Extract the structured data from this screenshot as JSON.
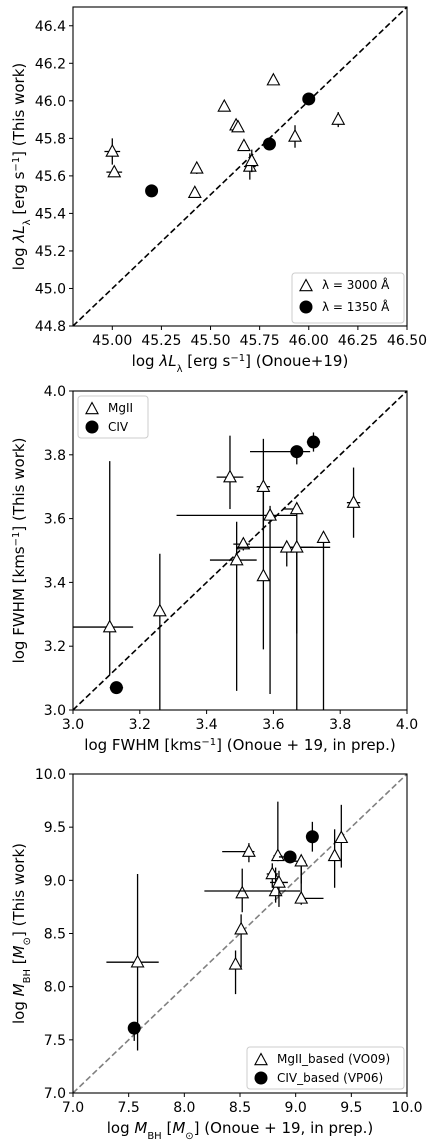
{
  "chart_data": [
    {
      "type": "scatter",
      "xlabel": "log  λL_λ [erg s⁻¹] (Onoue+19)",
      "ylabel": "log  λL_λ [erg s⁻¹] (This work)",
      "xlim": [
        44.8,
        46.5
      ],
      "ylim": [
        44.8,
        46.5
      ],
      "xticks": [
        "45.00",
        "45.25",
        "45.50",
        "45.75",
        "46.00",
        "46.25",
        "46.50"
      ],
      "yticks": [
        "44.8",
        "45.0",
        "45.2",
        "45.4",
        "45.6",
        "45.8",
        "46.0",
        "46.2",
        "46.4"
      ],
      "grid": false,
      "one_to_one_line": {
        "style": "dashed",
        "color": "#000000"
      },
      "legend_position": "lower right",
      "series": [
        {
          "name": "λ = 3000 Å",
          "marker": "triangle",
          "points": [
            {
              "x": 45.0,
              "y": 45.73,
              "xerr": 0.04,
              "yerr": 0.07
            },
            {
              "x": 45.01,
              "y": 45.62,
              "xerr": 0.04,
              "yerr": 0.02
            },
            {
              "x": 45.42,
              "y": 45.51,
              "xerr": 0.0,
              "yerr": 0.0
            },
            {
              "x": 45.43,
              "y": 45.64,
              "xerr": 0.02,
              "yerr": 0.03
            },
            {
              "x": 45.57,
              "y": 45.97,
              "xerr": 0.0,
              "yerr": 0.0
            },
            {
              "x": 45.63,
              "y": 45.87,
              "xerr": 0.02,
              "yerr": 0.01
            },
            {
              "x": 45.64,
              "y": 45.86,
              "xerr": 0.0,
              "yerr": 0.0
            },
            {
              "x": 45.67,
              "y": 45.76,
              "xerr": 0.02,
              "yerr": 0.02
            },
            {
              "x": 45.7,
              "y": 45.65,
              "xerr": 0.03,
              "yerr": 0.07
            },
            {
              "x": 45.71,
              "y": 45.68,
              "xerr": 0.02,
              "yerr": 0.06
            },
            {
              "x": 45.82,
              "y": 46.11,
              "xerr": 0.0,
              "yerr": 0.0
            },
            {
              "x": 45.93,
              "y": 45.81,
              "xerr": 0.02,
              "yerr": 0.06
            },
            {
              "x": 46.15,
              "y": 45.9,
              "xerr": 0.0,
              "yerr": 0.04
            }
          ]
        },
        {
          "name": "λ = 1350 Å",
          "marker": "circle",
          "points": [
            {
              "x": 45.2,
              "y": 45.52,
              "xerr": 0,
              "yerr": 0
            },
            {
              "x": 45.8,
              "y": 45.77,
              "xerr": 0,
              "yerr": 0
            },
            {
              "x": 46.0,
              "y": 46.01,
              "xerr": 0,
              "yerr": 0
            }
          ]
        }
      ]
    },
    {
      "type": "scatter",
      "xlabel": "log FWHM [kms⁻¹] (Onoue + 19, in prep.)",
      "ylabel": "log FWHM [kms⁻¹] (This work)",
      "xlim": [
        3.0,
        4.0
      ],
      "ylim": [
        3.0,
        4.0
      ],
      "xticks": [
        "3.0",
        "3.2",
        "3.4",
        "3.6",
        "3.8",
        "4.0"
      ],
      "yticks": [
        "3.0",
        "3.2",
        "3.4",
        "3.6",
        "3.8",
        "4.0"
      ],
      "grid": false,
      "one_to_one_line": {
        "style": "dashed",
        "color": "#000000"
      },
      "legend_position": "upper left",
      "series": [
        {
          "name": "MgII",
          "marker": "triangle",
          "points": [
            {
              "x": 3.11,
              "y": 3.26,
              "xerr": [
                0.11,
                0.07
              ],
              "yerr": [
                0.15,
                0.52
              ]
            },
            {
              "x": 3.26,
              "y": 3.31,
              "xerr": [
                0.01,
                0.01
              ],
              "yerr": [
                0.31,
                0.18
              ]
            },
            {
              "x": 3.47,
              "y": 3.73,
              "xerr": [
                0.04,
                0.04
              ],
              "yerr": [
                0.1,
                0.13
              ]
            },
            {
              "x": 3.49,
              "y": 3.47,
              "xerr": [
                0.08,
                0.06
              ],
              "yerr": [
                0.41,
                0.12
              ]
            },
            {
              "x": 3.51,
              "y": 3.52,
              "xerr": [
                0.03,
                0.02
              ],
              "yerr": [
                0.02,
                0.01
              ]
            },
            {
              "x": 3.57,
              "y": 3.42,
              "xerr": [
                0.01,
                0.01
              ],
              "yerr": [
                0.23,
                0.28
              ]
            },
            {
              "x": 3.57,
              "y": 3.7,
              "xerr": [
                0.02,
                0.02
              ],
              "yerr": [
                0.14,
                0.15
              ]
            },
            {
              "x": 3.59,
              "y": 3.61,
              "xerr": [
                0.28,
                0.08
              ],
              "yerr": [
                0.56,
                0.03
              ]
            },
            {
              "x": 3.64,
              "y": 3.51,
              "xerr": [
                0.15,
                0.08
              ],
              "yerr": [
                0.06,
                0.02
              ]
            },
            {
              "x": 3.67,
              "y": 3.63,
              "xerr": [
                0.04,
                0.01
              ],
              "yerr": [
                0.39,
                0.02
              ]
            },
            {
              "x": 3.67,
              "y": 3.51,
              "xerr": [
                0.02,
                0.1
              ],
              "yerr": [
                0.51,
                0.02
              ]
            },
            {
              "x": 3.75,
              "y": 3.54,
              "xerr": [
                0.01,
                0.01
              ],
              "yerr": [
                0.54,
                0.01
              ]
            },
            {
              "x": 3.84,
              "y": 3.65,
              "xerr": [
                0.02,
                0.02
              ],
              "yerr": [
                0.11,
                0.11
              ]
            }
          ]
        },
        {
          "name": "CIV",
          "marker": "circle",
          "points": [
            {
              "x": 3.13,
              "y": 3.07,
              "xerr": [
                0.02,
                0.02
              ],
              "yerr": [
                0.01,
                0.01
              ]
            },
            {
              "x": 3.67,
              "y": 3.81,
              "xerr": [
                0.14,
                0.04
              ],
              "yerr": [
                0.04,
                0.01
              ]
            },
            {
              "x": 3.72,
              "y": 3.84,
              "xerr": [
                0.02,
                0.02
              ],
              "yerr": [
                0.03,
                0.03
              ]
            }
          ]
        }
      ]
    },
    {
      "type": "scatter",
      "xlabel": "log M_BH [M_⊙] (Onoue + 19, in prep.)",
      "ylabel": "log M_BH [M_⊙] (This work)",
      "xlim": [
        7.0,
        10.0
      ],
      "ylim": [
        7.0,
        10.0
      ],
      "xticks": [
        "7.0",
        "7.5",
        "8.0",
        "8.5",
        "9.0",
        "9.5",
        "10.0"
      ],
      "yticks": [
        "7.0",
        "7.5",
        "8.0",
        "8.5",
        "9.0",
        "9.5",
        "10.0"
      ],
      "grid": false,
      "one_to_one_line": {
        "style": "dashed",
        "color": "#808080"
      },
      "legend_position": "lower right",
      "series": [
        {
          "name": "MgII_based (VO09)",
          "marker": "triangle",
          "points": [
            {
              "x": 7.58,
              "y": 8.23,
              "xerr": [
                0.28,
                0.19
              ],
              "yerr": [
                0.83,
                0.83
              ]
            },
            {
              "x": 8.46,
              "y": 8.21,
              "xerr": [
                0.02,
                0.02
              ],
              "yerr": [
                0.28,
                0.13
              ]
            },
            {
              "x": 8.51,
              "y": 8.54,
              "xerr": [
                0.03,
                0.03
              ],
              "yerr": [
                0.36,
                0.14
              ]
            },
            {
              "x": 8.52,
              "y": 8.88,
              "xerr": [
                0.02,
                0.02
              ],
              "yerr": [
                0.18,
                0.23
              ]
            },
            {
              "x": 8.58,
              "y": 9.27,
              "xerr": [
                0.24,
                0.05
              ],
              "yerr": [
                0.1,
                0.08
              ]
            },
            {
              "x": 8.79,
              "y": 9.06,
              "xerr": [
                0.05,
                0.05
              ],
              "yerr": [
                0.13,
                0.1
              ]
            },
            {
              "x": 8.82,
              "y": 8.9,
              "xerr": [
                0.64,
                0.22
              ],
              "yerr": [
                0.11,
                0.22
              ]
            },
            {
              "x": 8.84,
              "y": 9.23,
              "xerr": [
                0.04,
                0.04
              ],
              "yerr": [
                0.05,
                0.51
              ]
            },
            {
              "x": 8.85,
              "y": 8.98,
              "xerr": [
                0.08,
                0.08
              ],
              "yerr": [
                0.23,
                0.11
              ]
            },
            {
              "x": 9.05,
              "y": 8.83,
              "xerr": [
                0.02,
                0.2
              ],
              "yerr": [
                0.06,
                0.39
              ]
            },
            {
              "x": 9.05,
              "y": 9.18,
              "xerr": [
                0.1,
                0.04
              ],
              "yerr": [
                0.21,
                0.05
              ]
            },
            {
              "x": 9.35,
              "y": 9.23,
              "xerr": [
                0.01,
                0.01
              ],
              "yerr": [
                0.3,
                0.25
              ]
            },
            {
              "x": 9.41,
              "y": 9.4,
              "xerr": [
                0.02,
                0.02
              ],
              "yerr": [
                0.28,
                0.31
              ]
            }
          ]
        },
        {
          "name": "CIV_based (VP06)",
          "marker": "circle",
          "points": [
            {
              "x": 7.55,
              "y": 7.61,
              "xerr": [
                0.03,
                0.03
              ],
              "yerr": [
                0.12,
                0.0
              ]
            },
            {
              "x": 8.95,
              "y": 9.22,
              "xerr": [
                0.1,
                0.04
              ],
              "yerr": [
                0.04,
                0.02
              ]
            },
            {
              "x": 9.15,
              "y": 9.41,
              "xerr": [
                0.01,
                0.01
              ],
              "yerr": [
                0.14,
                0.14
              ]
            }
          ]
        }
      ]
    }
  ]
}
